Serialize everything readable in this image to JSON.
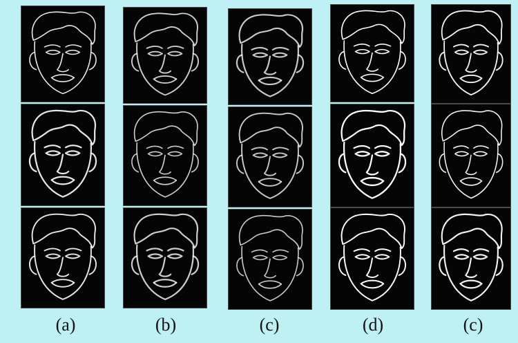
{
  "figure": {
    "colors": {
      "background": "#bff0f4",
      "edge": "#ffffff",
      "tile": "#050505"
    },
    "captions": [
      "(a)",
      "(b)",
      "(c)",
      "(d)",
      "(c)"
    ],
    "image_description": "A 3x5 grid of edge-detected face images with white outline strokes on black."
  }
}
